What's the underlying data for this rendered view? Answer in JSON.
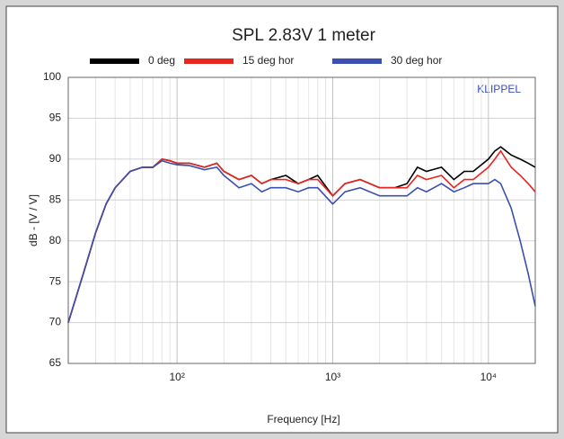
{
  "chart_data": {
    "type": "line",
    "title": "SPL 2.83V 1 meter",
    "xlabel": "Frequency [Hz]",
    "ylabel": "dB - [V / V]",
    "annotation": "KLIPPEL",
    "xscale": "log",
    "grid": true,
    "x": [
      20,
      25,
      30,
      35,
      40,
      50,
      60,
      70,
      80,
      90,
      100,
      120,
      150,
      180,
      200,
      250,
      300,
      350,
      400,
      500,
      600,
      700,
      800,
      1000,
      1200,
      1500,
      2000,
      2500,
      3000,
      3500,
      4000,
      5000,
      6000,
      7000,
      8000,
      10000,
      11000,
      12000,
      14000,
      16000,
      18000,
      20000
    ],
    "series": [
      {
        "name": "0 deg",
        "color": "#000000",
        "values": [
          70,
          76,
          81,
          84.5,
          86.5,
          88.5,
          89,
          89,
          90,
          89.8,
          89.5,
          89.5,
          89,
          89.5,
          88.5,
          87.5,
          88,
          87,
          87.5,
          88,
          87,
          87.5,
          88,
          85.5,
          87,
          87.5,
          86.5,
          86.5,
          87,
          89,
          88.5,
          89,
          87.5,
          88.5,
          88.5,
          90,
          91,
          91.5,
          90.5,
          90,
          89.5,
          89
        ]
      },
      {
        "name": "15 deg hor",
        "color": "#e8251f",
        "values": [
          70,
          76,
          81,
          84.5,
          86.5,
          88.5,
          89,
          89,
          90,
          89.8,
          89.5,
          89.5,
          89,
          89.5,
          88.5,
          87.5,
          88,
          87,
          87.5,
          87.5,
          87,
          87.5,
          87.5,
          85.5,
          87,
          87.5,
          86.5,
          86.5,
          86.5,
          88,
          87.5,
          88,
          86.5,
          87.5,
          87.5,
          89,
          90,
          91,
          89,
          88,
          87,
          86
        ]
      },
      {
        "name": "30 deg hor",
        "color": "#3a4fb0",
        "values": [
          70,
          76,
          81,
          84.5,
          86.5,
          88.5,
          89,
          89,
          89.8,
          89.5,
          89.3,
          89.2,
          88.7,
          89,
          88,
          86.5,
          87,
          86,
          86.5,
          86.5,
          86,
          86.5,
          86.5,
          84.5,
          86,
          86.5,
          85.5,
          85.5,
          85.5,
          86.5,
          86,
          87,
          86,
          86.5,
          87,
          87,
          87.5,
          87,
          84,
          80,
          76,
          72
        ]
      }
    ],
    "xlim": [
      20,
      20000
    ],
    "xticks": [
      {
        "value": 100,
        "label": "10²"
      },
      {
        "value": 1000,
        "label": "10³"
      },
      {
        "value": 10000,
        "label": "10⁴"
      }
    ],
    "xminorticks": [
      30,
      40,
      50,
      60,
      70,
      80,
      90,
      200,
      300,
      400,
      500,
      600,
      700,
      800,
      900,
      2000,
      3000,
      4000,
      5000,
      6000,
      7000,
      8000,
      9000
    ],
    "ylim": [
      65,
      100
    ],
    "yticks": [
      65,
      70,
      75,
      80,
      85,
      90,
      95,
      100
    ]
  }
}
